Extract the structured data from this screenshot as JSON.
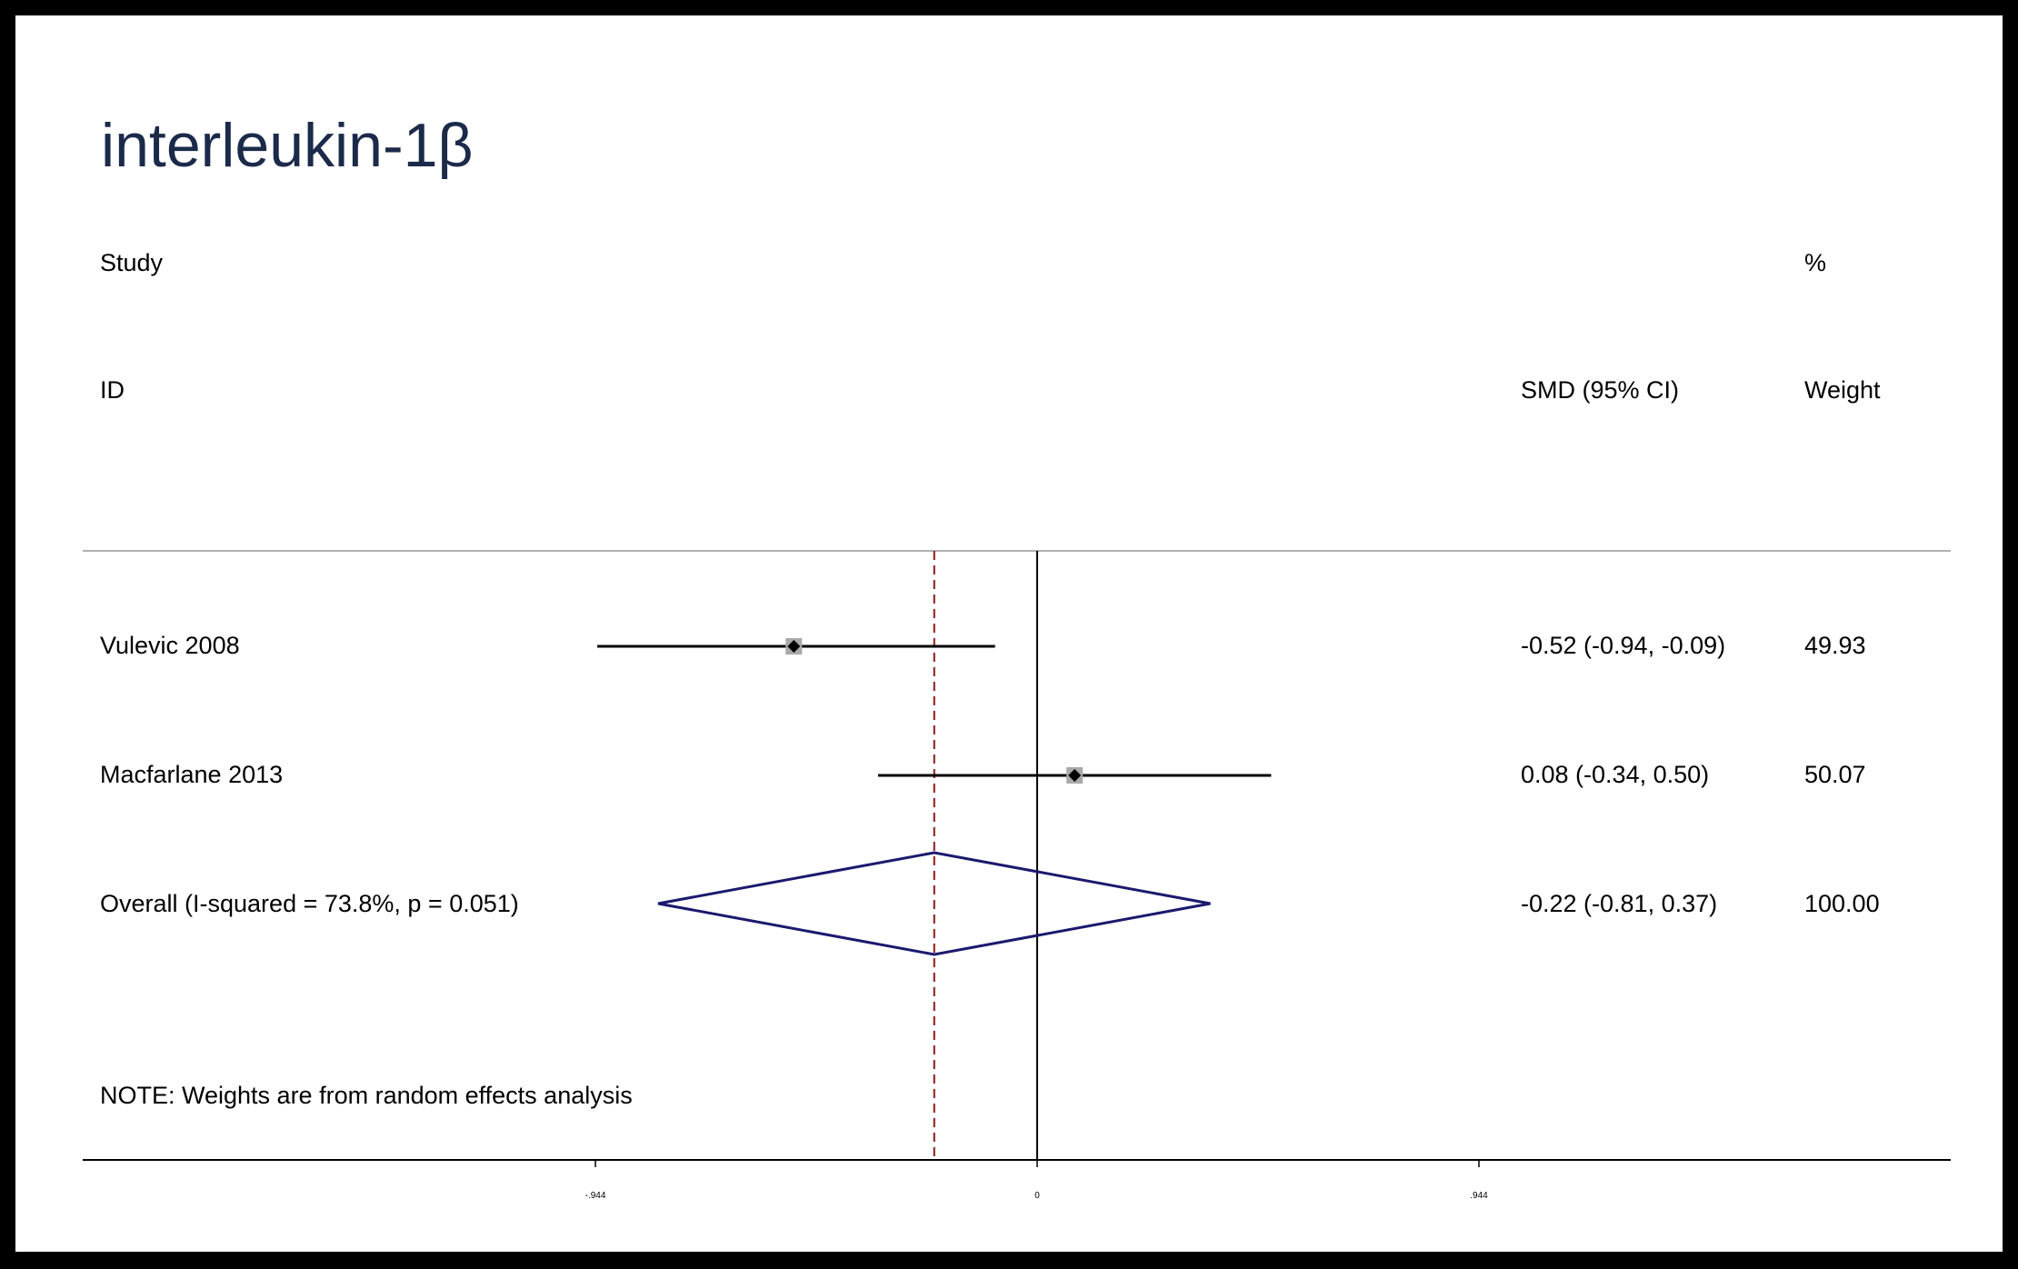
{
  "title": "interleukin-1β",
  "headers": {
    "study": "Study",
    "id": "ID",
    "smd": "SMD (95% CI)",
    "pct": "%",
    "weight": "Weight"
  },
  "note": "NOTE: Weights are from random effects analysis",
  "chart_data": {
    "type": "forest",
    "title": "interleukin-1β",
    "xlabel": "",
    "ylabel": "",
    "xlim": [
      -1.0,
      1.0
    ],
    "null_line": 0,
    "reference_line": -0.22,
    "x_ticks": [
      {
        "value": -0.944,
        "label": "-.944"
      },
      {
        "value": 0,
        "label": "0"
      },
      {
        "value": 0.944,
        "label": ".944"
      }
    ],
    "studies": [
      {
        "name": "Vulevic 2008",
        "smd": -0.52,
        "lower": -0.94,
        "upper": -0.09,
        "ci_text": "-0.52 (-0.94, -0.09)",
        "weight": 49.93,
        "weight_text": "49.93"
      },
      {
        "name": "Macfarlane 2013",
        "smd": 0.08,
        "lower": -0.34,
        "upper": 0.5,
        "ci_text": "0.08 (-0.34, 0.50)",
        "weight": 50.07,
        "weight_text": "50.07"
      }
    ],
    "overall": {
      "label": "Overall  (I-squared = 73.8%, p = 0.051)",
      "smd": -0.22,
      "lower": -0.81,
      "upper": 0.37,
      "ci_text": "-0.22 (-0.81, 0.37)",
      "weight_text": "100.00"
    },
    "colors": {
      "diamond": "#1a1a6e",
      "reference_line": "#8b1a1a",
      "square": "#a9a9a9"
    }
  }
}
